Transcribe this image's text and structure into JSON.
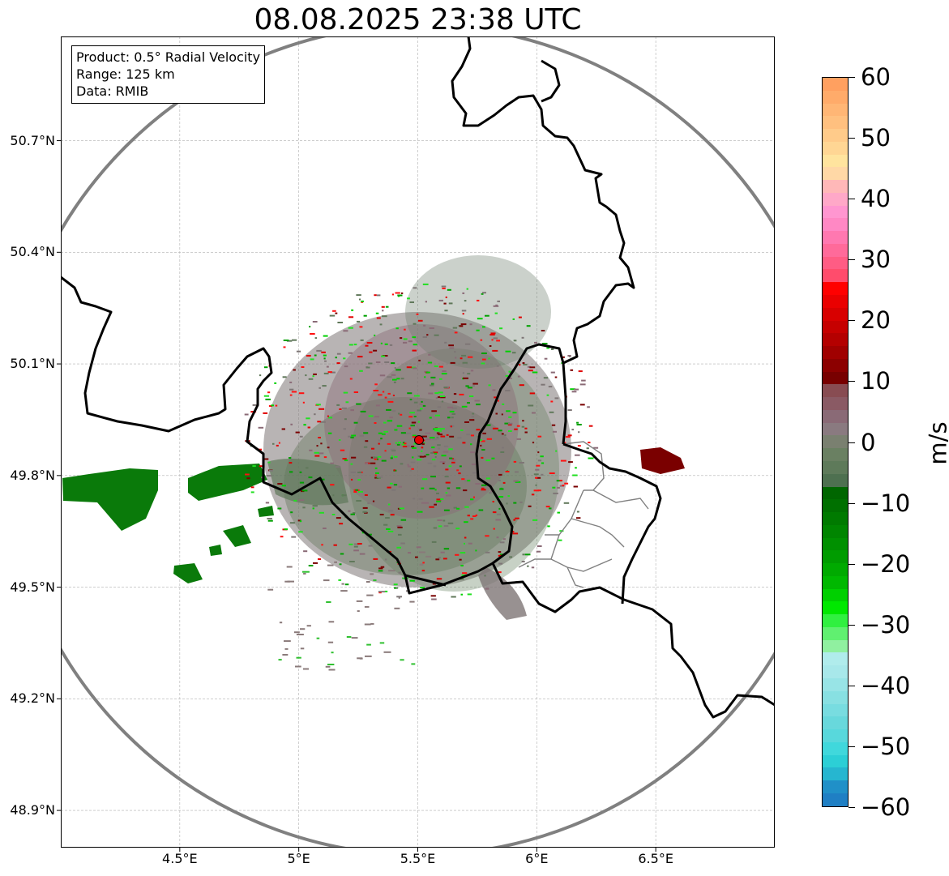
{
  "title": "08.08.2025 23:38 UTC",
  "info": {
    "product": "Product: 0.5° Radial Velocity",
    "range": "Range: 125 km",
    "data": "Data: RMIB"
  },
  "map": {
    "lon_min": 4.0,
    "lon_max": 7.0,
    "lat_min": 48.8,
    "lat_max": 50.98,
    "radar_site": {
      "lon": 5.505,
      "lat": 49.914
    },
    "range_km": 125,
    "lat_ticks": [
      {
        "value": 48.9,
        "label": "48.9°N"
      },
      {
        "value": 49.2,
        "label": "49.2°N"
      },
      {
        "value": 49.5,
        "label": "49.5°N"
      },
      {
        "value": 49.8,
        "label": "49.8°N"
      },
      {
        "value": 50.1,
        "label": "50.1°N"
      },
      {
        "value": 50.4,
        "label": "50.4°N"
      },
      {
        "value": 50.7,
        "label": "50.7°N"
      }
    ],
    "lon_ticks": [
      {
        "value": 4.5,
        "label": "4.5°E"
      },
      {
        "value": 5.0,
        "label": "5°E"
      },
      {
        "value": 5.5,
        "label": "5.5°E"
      },
      {
        "value": 6.0,
        "label": "6°E"
      },
      {
        "value": 6.5,
        "label": "6.5°E"
      }
    ],
    "colors": {
      "range_ring": "#808080",
      "borders": "#000000",
      "province_borders": "#808080",
      "gridlines": "#b0b0b0",
      "radar_marker": "#e60000"
    }
  },
  "colorbar": {
    "unit": "m/s",
    "min": -60,
    "max": 60,
    "ticks": [
      {
        "value": 60,
        "label": "60"
      },
      {
        "value": 50,
        "label": "50"
      },
      {
        "value": 40,
        "label": "40"
      },
      {
        "value": 30,
        "label": "30"
      },
      {
        "value": 20,
        "label": "20"
      },
      {
        "value": 10,
        "label": "10"
      },
      {
        "value": 0,
        "label": "0"
      },
      {
        "value": -10,
        "label": "−10"
      },
      {
        "value": -20,
        "label": "−20"
      },
      {
        "value": -30,
        "label": "−30"
      },
      {
        "value": -40,
        "label": "−40"
      },
      {
        "value": -50,
        "label": "−50"
      },
      {
        "value": -60,
        "label": "−60"
      }
    ],
    "colors_top_to_bottom": [
      "#ffa060",
      "#ffab6a",
      "#ffb675",
      "#ffc07f",
      "#ffcb8a",
      "#ffd694",
      "#ffe49e",
      "#ffd8a6",
      "#ffb8b8",
      "#ffa8c8",
      "#ff96d0",
      "#ff88c4",
      "#ff78b0",
      "#ff6a9a",
      "#ff5c84",
      "#ff4c6c",
      "#ff0000",
      "#ea0000",
      "#d80000",
      "#c60000",
      "#b40000",
      "#a00000",
      "#8c0000",
      "#780000",
      "#884c52",
      "#8a5a64",
      "#8a6a76",
      "#8a7a80",
      "#7a8070",
      "#6a8062",
      "#5e7a5a",
      "#4e7050",
      "#006600",
      "#007000",
      "#007a00",
      "#008500",
      "#009000",
      "#009c00",
      "#00aa00",
      "#00b800",
      "#00d000",
      "#00e800",
      "#30f040",
      "#60f070",
      "#90f0a0",
      "#b0ecec",
      "#a8e8ea",
      "#98e4e6",
      "#88e0e2",
      "#78dce0",
      "#68d8dc",
      "#58d8dc",
      "#40d8dc",
      "#2ccfd6",
      "#26b6d0",
      "#2090c8",
      "#1f7fc4"
    ]
  }
}
